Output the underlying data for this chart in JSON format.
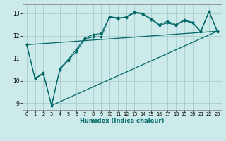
{
  "xlabel": "Humidex (Indice chaleur)",
  "ylabel": "",
  "bg_color": "#cceaea",
  "grid_color": "#aacccc",
  "line_color": "#006666",
  "xlim": [
    -0.5,
    23.5
  ],
  "ylim": [
    8.7,
    13.4
  ],
  "xticks": [
    0,
    1,
    2,
    3,
    4,
    5,
    6,
    7,
    8,
    9,
    10,
    11,
    12,
    13,
    14,
    15,
    16,
    17,
    18,
    19,
    20,
    21,
    22,
    23
  ],
  "yticks": [
    9,
    10,
    11,
    12,
    13
  ],
  "x": [
    0,
    1,
    2,
    3,
    4,
    5,
    6,
    7,
    8,
    9,
    10,
    11,
    12,
    13,
    14,
    15,
    16,
    17,
    18,
    19,
    20,
    21,
    22,
    23
  ],
  "line1": [
    11.6,
    10.1,
    10.3,
    8.9,
    10.5,
    10.9,
    11.3,
    11.85,
    11.95,
    11.95,
    12.85,
    12.75,
    12.85,
    13.05,
    13.0,
    12.75,
    12.5,
    12.65,
    12.5,
    12.7,
    12.6,
    12.2,
    13.1,
    12.2
  ],
  "line2": [
    11.6,
    10.1,
    10.35,
    8.9,
    10.55,
    10.95,
    11.4,
    11.9,
    12.05,
    12.1,
    12.85,
    12.8,
    12.82,
    13.02,
    12.97,
    12.72,
    12.47,
    12.57,
    12.47,
    12.67,
    12.57,
    12.17,
    13.07,
    12.17
  ],
  "line3_x": [
    0,
    23
  ],
  "line3_y": [
    11.6,
    12.2
  ],
  "line4_x": [
    3,
    23
  ],
  "line4_y": [
    8.9,
    12.2
  ]
}
